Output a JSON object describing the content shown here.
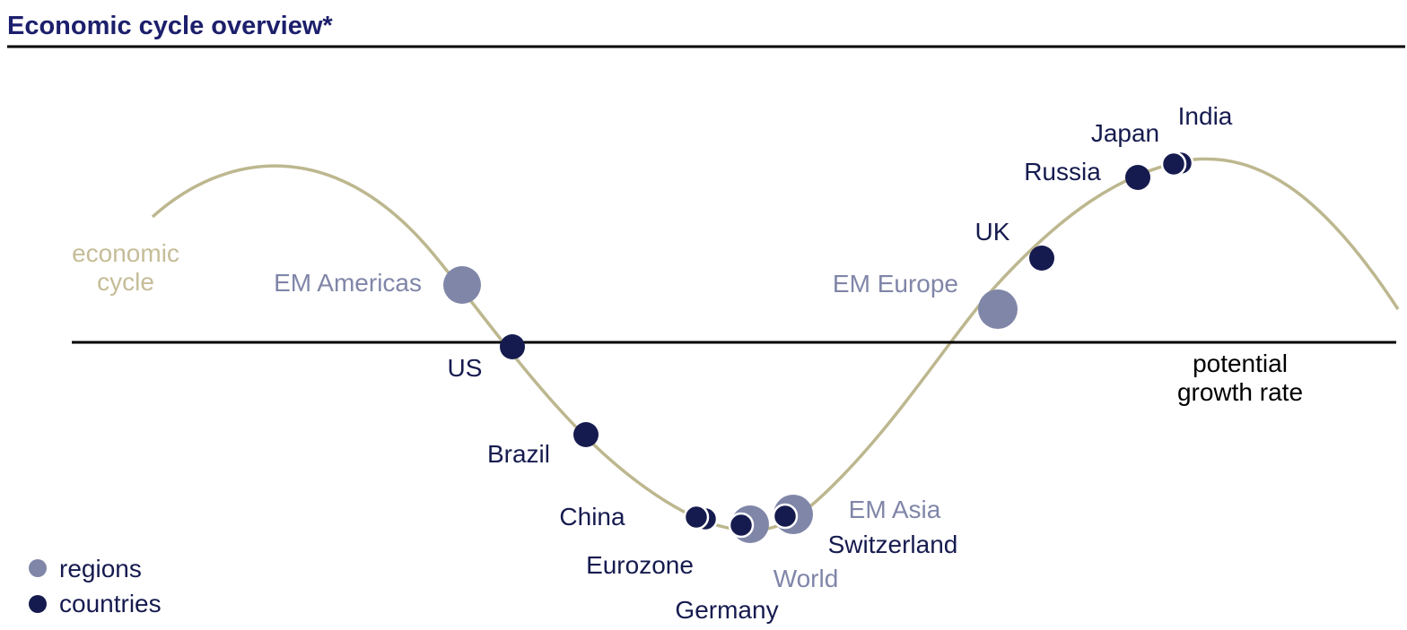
{
  "title": "Economic cycle overview*",
  "curve_label": [
    "economic",
    "cycle"
  ],
  "baseline_label": [
    "potential",
    "growth rate"
  ],
  "legend": {
    "regions": "regions",
    "countries": "countries"
  },
  "colors": {
    "title": "#1c1f6b",
    "country": "#161b4f",
    "region": "#8086a8",
    "curve": "#bdb78f",
    "curve_label": "#c5bd98",
    "line": "#000000"
  },
  "points": [
    {
      "label": "EM Americas",
      "kind": "region"
    },
    {
      "label": "US",
      "kind": "country"
    },
    {
      "label": "Brazil",
      "kind": "country"
    },
    {
      "label": "China",
      "kind": "country"
    },
    {
      "label": "Eurozone",
      "kind": "country"
    },
    {
      "label": "Germany",
      "kind": "country"
    },
    {
      "label": "World",
      "kind": "region"
    },
    {
      "label": "Switzerland",
      "kind": "country"
    },
    {
      "label": "EM Asia",
      "kind": "region"
    },
    {
      "label": "EM Europe",
      "kind": "region"
    },
    {
      "label": "UK",
      "kind": "country"
    },
    {
      "label": "Russia",
      "kind": "country"
    },
    {
      "label": "Japan",
      "kind": "country"
    },
    {
      "label": "India",
      "kind": "country"
    }
  ]
}
